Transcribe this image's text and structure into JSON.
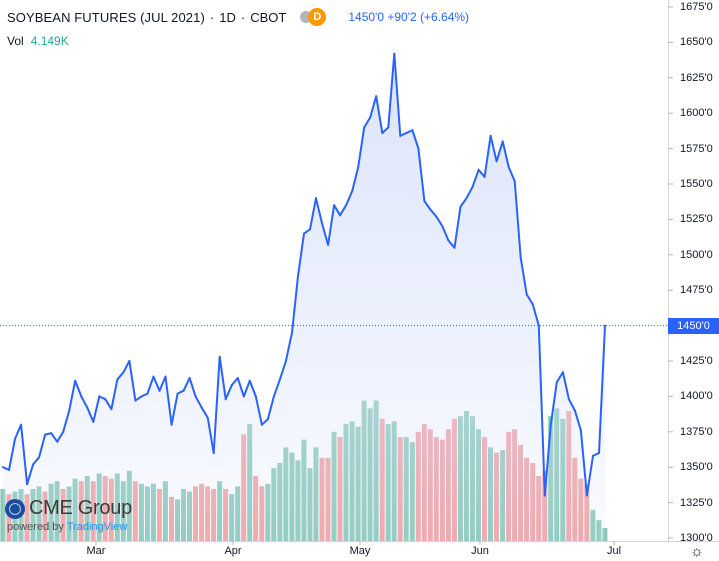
{
  "header": {
    "title": "SOYBEAN FUTURES (JUL 2021)",
    "interval": "1D",
    "exchange": "CBOT",
    "badge_letter": "D",
    "last_price": "1450'0",
    "change": "+90'2",
    "change_pct": "(+6.64%)"
  },
  "volume": {
    "label": "Vol",
    "value": "4.149K"
  },
  "branding": {
    "logo_text": "CME Group",
    "powered_by": "powered by",
    "powered_by_brand": "TradingView"
  },
  "x_axis_labels": [
    "Mar",
    "Apr",
    "May",
    "Jun",
    "Jul"
  ],
  "price_axis_labels": [
    "1675'0",
    "1650'0",
    "1625'0",
    "1600'0",
    "1575'0",
    "1550'0",
    "1525'0",
    "1500'0",
    "1475'0",
    "1450'0",
    "1425'0",
    "1400'0",
    "1375'0",
    "1350'0",
    "1325'0",
    "1300'0"
  ],
  "last_price_tag": "1450'0",
  "colors": {
    "line": "#2962ff",
    "area": "#dbe3fb",
    "vol_up": "#89c9b8",
    "vol_down": "#f0a2a2",
    "tag": "#2962ff"
  },
  "icons": {
    "settings": "gear-icon"
  },
  "chart_data": {
    "type": "area",
    "title": "SOYBEAN FUTURES (JUL 2021)",
    "ylabel": "",
    "xlabel": "",
    "ylim": [
      1300,
      1680
    ],
    "grid": false,
    "series": [
      {
        "name": "",
        "values": [
          1350,
          1348,
          1370,
          1380,
          1338,
          1352,
          1357,
          1373,
          1374,
          1368,
          1375,
          1390,
          1411,
          1400,
          1392,
          1382,
          1400,
          1398,
          1391,
          1412,
          1417,
          1425,
          1397,
          1400,
          1402,
          1414,
          1404,
          1414,
          1380,
          1402,
          1404,
          1413,
          1400,
          1392,
          1385,
          1360,
          1428,
          1398,
          1408,
          1413,
          1400,
          1411,
          1400,
          1380,
          1384,
          1400,
          1412,
          1425,
          1445,
          1485,
          1515,
          1518,
          1540,
          1522,
          1507,
          1535,
          1528,
          1535,
          1545,
          1562,
          1590,
          1597,
          1612,
          1586,
          1590,
          1642,
          1584,
          1586,
          1588,
          1575,
          1538,
          1532,
          1527,
          1520,
          1510,
          1505,
          1534,
          1540,
          1548,
          1560,
          1555,
          1584,
          1566,
          1580,
          1562,
          1552,
          1498,
          1472,
          1465,
          1450,
          1330,
          1380,
          1410,
          1417,
          1398,
          1390,
          1376,
          1330,
          1358,
          1360,
          1450
        ]
      }
    ],
    "volume": {
      "values": [
        2.0,
        1.8,
        1.9,
        2.0,
        1.8,
        2.0,
        2.1,
        1.9,
        2.2,
        2.3,
        2.0,
        2.1,
        2.4,
        2.3,
        2.5,
        2.3,
        2.6,
        2.5,
        2.4,
        2.6,
        2.3,
        2.7,
        2.3,
        2.2,
        2.1,
        2.2,
        2.0,
        2.3,
        1.7,
        1.6,
        2.0,
        1.9,
        2.1,
        2.2,
        2.1,
        2.0,
        2.3,
        2.0,
        1.8,
        2.1,
        4.1,
        4.5,
        2.5,
        2.1,
        2.2,
        2.8,
        3.0,
        3.6,
        3.4,
        3.1,
        3.9,
        2.8,
        3.6,
        3.2,
        3.2,
        4.2,
        4.0,
        4.5,
        4.6,
        4.4,
        5.4,
        5.1,
        5.4,
        4.7,
        4.5,
        4.6,
        4.0,
        4.0,
        3.8,
        4.2,
        4.5,
        4.3,
        4.0,
        3.9,
        4.3,
        4.7,
        4.8,
        5.0,
        4.8,
        4.3,
        4.0,
        3.6,
        3.4,
        3.5,
        4.2,
        4.3,
        3.7,
        3.2,
        3.0,
        2.5,
        2.7,
        4.8,
        5.1,
        4.7,
        5.0,
        3.2,
        2.4,
        2.2,
        1.2,
        0.8,
        0.5
      ],
      "direction": [
        "u",
        "d",
        "u",
        "u",
        "d",
        "u",
        "u",
        "d",
        "u",
        "u",
        "d",
        "u",
        "u",
        "d",
        "u",
        "d",
        "u",
        "d",
        "d",
        "u",
        "u",
        "u",
        "d",
        "u",
        "u",
        "u",
        "d",
        "u",
        "d",
        "u",
        "u",
        "u",
        "d",
        "d",
        "d",
        "d",
        "u",
        "d",
        "u",
        "u",
        "d",
        "u",
        "d",
        "d",
        "u",
        "u",
        "u",
        "u",
        "u",
        "u",
        "u",
        "u",
        "u",
        "d",
        "d",
        "u",
        "d",
        "u",
        "u",
        "u",
        "u",
        "u",
        "u",
        "d",
        "u",
        "u",
        "d",
        "u",
        "u",
        "d",
        "d",
        "d",
        "d",
        "d",
        "d",
        "d",
        "u",
        "u",
        "u",
        "u",
        "d",
        "u",
        "d",
        "u",
        "d",
        "d",
        "d",
        "d",
        "d",
        "d",
        "d",
        "u",
        "u",
        "u",
        "d",
        "d",
        "d",
        "d",
        "u",
        "u",
        "u"
      ]
    },
    "x_labels": [
      "Mar",
      "Apr",
      "May",
      "Jun",
      "Jul"
    ],
    "last_value": 1450
  }
}
